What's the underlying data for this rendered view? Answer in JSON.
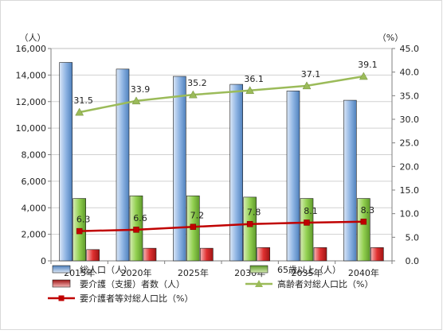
{
  "chart_data": {
    "type": "bar",
    "categories": [
      "2015年",
      "2020年",
      "2025年",
      "2030年",
      "2035年",
      "2040年"
    ],
    "left_axis": {
      "unit": "（人）",
      "min": 0,
      "max": 16000,
      "step": 2000,
      "ticks": [
        "0",
        "2,000",
        "4,000",
        "6,000",
        "8,000",
        "10,000",
        "12,000",
        "14,000",
        "16,000"
      ]
    },
    "right_axis": {
      "unit": "（%）",
      "min": 0,
      "max": 45,
      "step": 5,
      "ticks": [
        "0.0",
        "5.0",
        "10.0",
        "15.0",
        "20.0",
        "25.0",
        "30.0",
        "35.0",
        "40.0",
        "45.0"
      ]
    },
    "grid": true,
    "legend_position": "bottom",
    "series": [
      {
        "name": "総人口（人）",
        "type": "bar",
        "axis": "left",
        "color": "#8eb4e3",
        "values": [
          14950,
          14450,
          13900,
          13300,
          12800,
          12100
        ]
      },
      {
        "name": "65歳以上（人）",
        "type": "bar",
        "axis": "left",
        "color": "#92d050",
        "values": [
          4700,
          4900,
          4900,
          4800,
          4700,
          4700
        ]
      },
      {
        "name": "要介護（支援）者数（人）",
        "type": "bar",
        "axis": "left",
        "color": "#e03030",
        "values": [
          850,
          950,
          950,
          1000,
          1000,
          1000
        ]
      },
      {
        "name": "高齢者対総人口比（%）",
        "type": "line",
        "axis": "right",
        "color": "#9bbb59",
        "marker": "triangle",
        "values": [
          31.5,
          33.9,
          35.2,
          36.1,
          37.1,
          39.1
        ],
        "labels": [
          "31.5",
          "33.9",
          "35.2",
          "36.1",
          "37.1",
          "39.1"
        ]
      },
      {
        "name": "要介護者等対総人口比（%）",
        "type": "line",
        "axis": "right",
        "color": "#c00000",
        "marker": "square",
        "values": [
          6.3,
          6.6,
          7.2,
          7.8,
          8.1,
          8.3
        ],
        "labels": [
          "6.3",
          "6.6",
          "7.2",
          "7.8",
          "8.1",
          "8.3"
        ]
      }
    ]
  }
}
